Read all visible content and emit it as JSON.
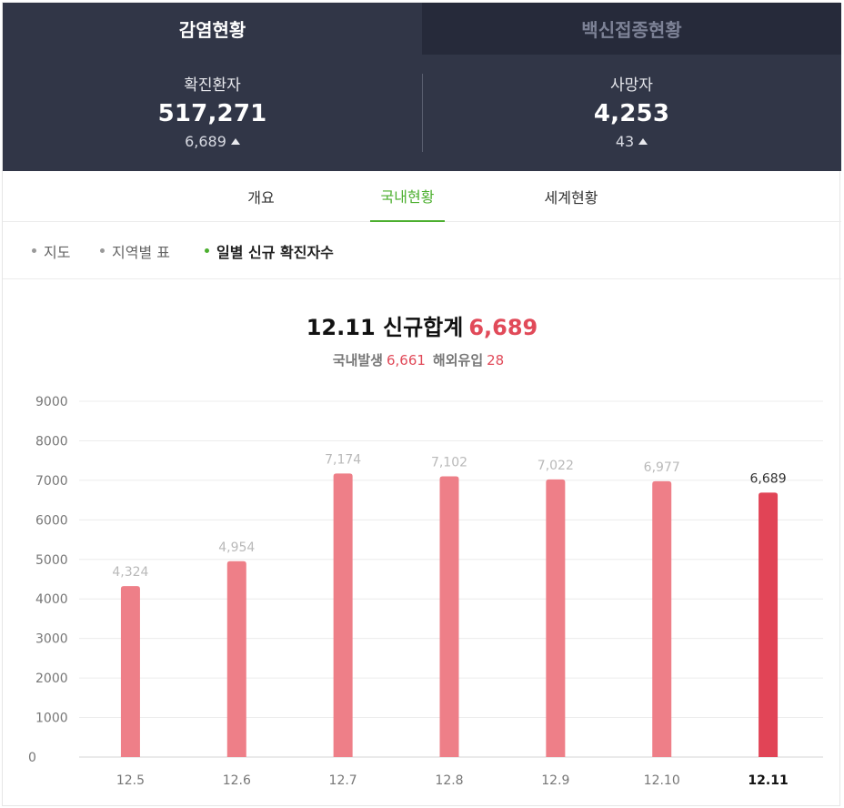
{
  "top_tabs": [
    {
      "label": "감염현황",
      "active": true
    },
    {
      "label": "백신접종현황",
      "active": false
    }
  ],
  "stats": {
    "confirmed": {
      "label": "확진환자",
      "value": "517,271",
      "delta": "6,689"
    },
    "deaths": {
      "label": "사망자",
      "value": "4,253",
      "delta": "43"
    }
  },
  "sub_tabs": [
    {
      "label": "개요",
      "active": false
    },
    {
      "label": "국내현황",
      "active": true
    },
    {
      "label": "세계현황",
      "active": false
    }
  ],
  "filters": [
    {
      "label": "지도",
      "active": false
    },
    {
      "label": "지역별 표",
      "active": false
    },
    {
      "label": "일별 신규 확진자수",
      "active": true
    }
  ],
  "summary": {
    "headline": "12.11 신규합계",
    "total": "6,689",
    "domestic_label": "국내발생",
    "domestic_value": "6,661",
    "overseas_label": "해외유입",
    "overseas_value": "28"
  },
  "colors": {
    "accent_green": "#4caf2f",
    "bar": "#ee7f88",
    "bar_highlight": "#e14456",
    "header_bg": "#313647"
  },
  "chart_data": {
    "type": "bar",
    "categories": [
      "12.5",
      "12.6",
      "12.7",
      "12.8",
      "12.9",
      "12.10",
      "12.11"
    ],
    "values": [
      4324,
      4954,
      7174,
      7102,
      7022,
      6977,
      6689
    ],
    "data_labels": [
      "4,324",
      "4,954",
      "7,174",
      "7,102",
      "7,022",
      "6,977",
      "6,689"
    ],
    "ylim": [
      0,
      9000
    ],
    "yticks": [
      "0",
      "1000",
      "2000",
      "3000",
      "4000",
      "5000",
      "6000",
      "7000",
      "8000",
      "9000"
    ],
    "highlight_index": 6,
    "grid": true
  }
}
